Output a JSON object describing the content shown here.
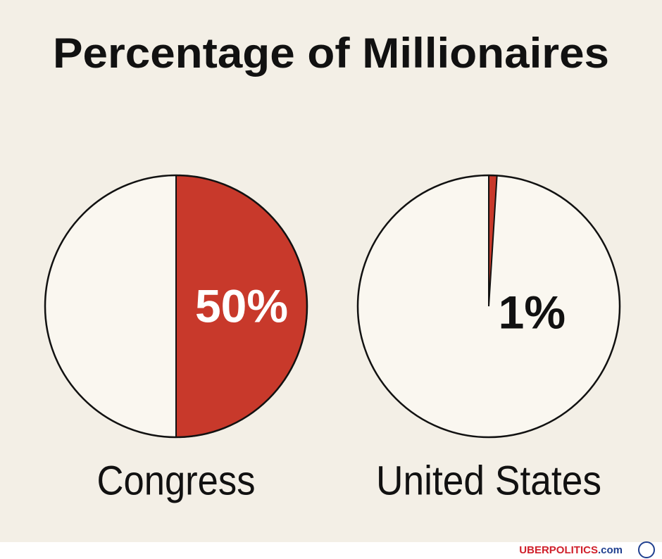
{
  "title": "Percentage of Millionaires",
  "chart_data": [
    {
      "type": "pie",
      "label": "Congress",
      "values": [
        50
      ],
      "value_labels": [
        "50%"
      ],
      "color": "#c8392b"
    },
    {
      "type": "pie",
      "label": "United States",
      "values": [
        1
      ],
      "value_labels": [
        "1%"
      ],
      "color": "#c8392b"
    }
  ],
  "footer": {
    "brand_name": "UBERPOLITICS",
    "brand_domain": ".com"
  }
}
